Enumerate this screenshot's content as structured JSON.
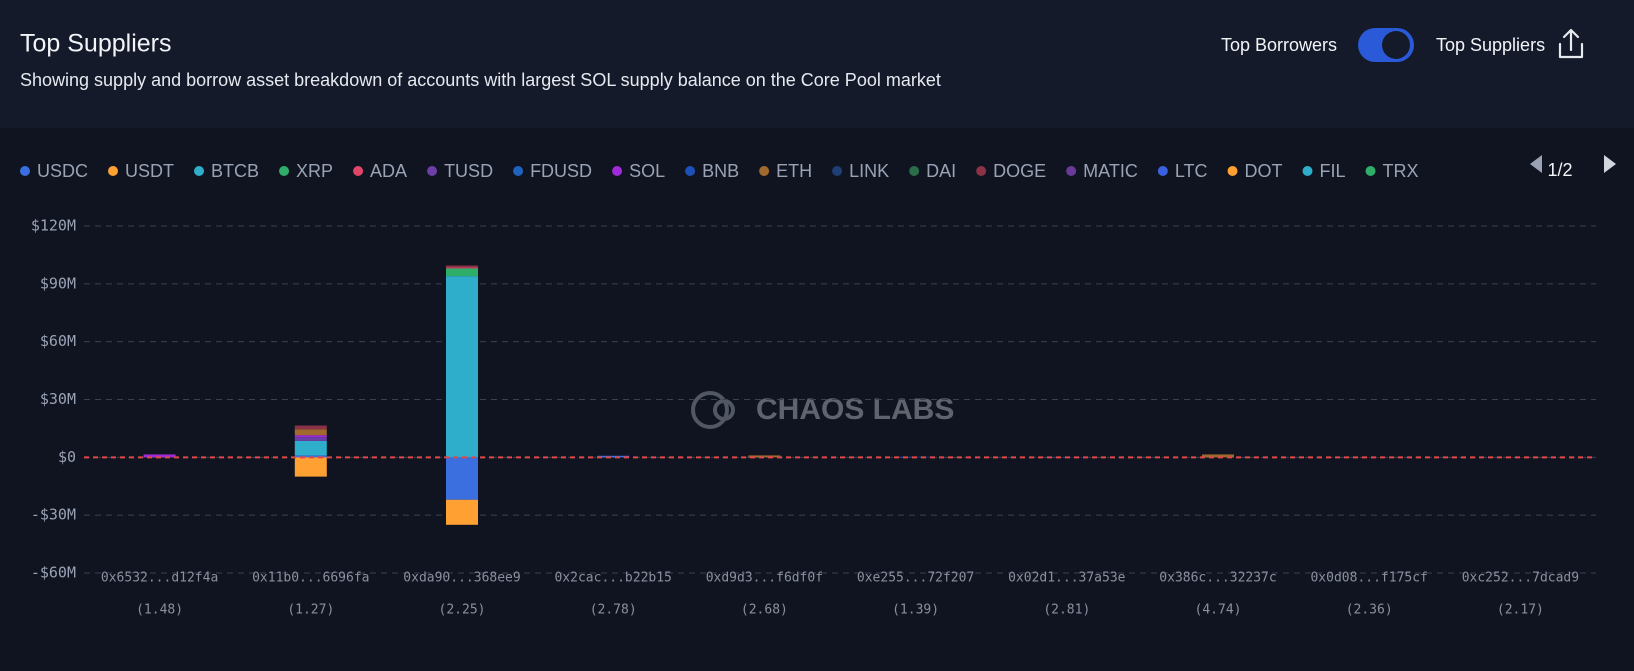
{
  "header": {
    "title": "Top Suppliers",
    "subtitle": "Showing supply and borrow asset breakdown of accounts with largest SOL supply balance on the Core Pool market",
    "toggle_left": "Top Borrowers",
    "toggle_right": "Top Suppliers"
  },
  "legend_page": "1/2",
  "watermark": "CHAOS LABS",
  "chart_data": {
    "type": "stacked_bar",
    "categories": [
      "0x6532...d12f4a",
      "0x11b0...6696fa",
      "0xda90...368ee9",
      "0x2cac...b22b15",
      "0xd9d3...f6df0f",
      "0xe255...72f207",
      "0x02d1...37a53e",
      "0x386c...32237c",
      "0x0d08...f175cf",
      "0xc252...7dcad9"
    ],
    "category_notes": [
      "(1.48)",
      "(1.27)",
      "(2.25)",
      "(2.78)",
      "(2.68)",
      "(1.39)",
      "(2.81)",
      "(4.74)",
      "(2.36)",
      "(2.17)"
    ],
    "ylim": [
      -60,
      120
    ],
    "yticks": [
      {
        "value": -60,
        "label": "-$60M"
      },
      {
        "value": -30,
        "label": "-$30M"
      },
      {
        "value": 0,
        "label": "$0"
      },
      {
        "value": 30,
        "label": "$30M"
      },
      {
        "value": 60,
        "label": "$60M"
      },
      {
        "value": 90,
        "label": "$90M"
      },
      {
        "value": 120,
        "label": "$120M"
      }
    ],
    "grid": true,
    "series": [
      {
        "name": "USDC",
        "color": "#3b6fe0",
        "values": [
          0,
          1,
          -22,
          0.8,
          0,
          0,
          0,
          0,
          0,
          0
        ]
      },
      {
        "name": "USDT",
        "color": "#ffa033",
        "values": [
          0,
          -10,
          -13,
          0,
          0,
          0,
          0,
          0,
          0,
          0
        ]
      },
      {
        "name": "BTCB",
        "color": "#2eaecb",
        "values": [
          0,
          7.5,
          94,
          0,
          0,
          0,
          0,
          0,
          0,
          0
        ]
      },
      {
        "name": "XRP",
        "color": "#2fae6a",
        "values": [
          0,
          0,
          4,
          0,
          0,
          0,
          0,
          0,
          0,
          0
        ]
      },
      {
        "name": "ADA",
        "color": "#e0466a",
        "values": [
          0,
          0,
          0.5,
          0,
          0,
          0,
          0,
          0,
          0,
          0
        ]
      },
      {
        "name": "TUSD",
        "color": "#6c3ea8",
        "values": [
          0,
          2,
          0,
          0,
          0,
          0,
          0,
          0,
          0,
          0
        ]
      },
      {
        "name": "FDUSD",
        "color": "#1f63c0",
        "values": [
          0,
          0,
          0,
          0,
          0,
          0,
          0,
          0,
          0,
          0
        ]
      },
      {
        "name": "SOL",
        "color": "#a02ad8",
        "values": [
          1.5,
          1,
          0,
          0,
          0,
          0,
          0,
          0,
          0,
          0
        ]
      },
      {
        "name": "BNB",
        "color": "#1f4fb8",
        "values": [
          0,
          0,
          0,
          0,
          0,
          0.3,
          0.2,
          0,
          0,
          0
        ]
      },
      {
        "name": "ETH",
        "color": "#a06a2e",
        "values": [
          0,
          3,
          0,
          0,
          1,
          0,
          0,
          1.5,
          0.1,
          0.1
        ]
      },
      {
        "name": "LINK",
        "color": "#1e3f75",
        "values": [
          0,
          0,
          0,
          0,
          0,
          0,
          0,
          0,
          0,
          0
        ]
      },
      {
        "name": "DAI",
        "color": "#2a6d48",
        "values": [
          0,
          0,
          0,
          0,
          0,
          0,
          0,
          0,
          0,
          0
        ]
      },
      {
        "name": "DOGE",
        "color": "#8b3346",
        "values": [
          0,
          2,
          1,
          0,
          0,
          0,
          0,
          0,
          0,
          0
        ]
      },
      {
        "name": "MATIC",
        "color": "#6a3a9a",
        "values": [
          0,
          0,
          0,
          0,
          0,
          0,
          0,
          0,
          0,
          0
        ]
      },
      {
        "name": "LTC",
        "color": "#3a62e0",
        "values": [
          0,
          0,
          0,
          0,
          0,
          0,
          0,
          0,
          0,
          0
        ]
      },
      {
        "name": "DOT",
        "color": "#ffa033",
        "values": [
          0,
          0,
          0,
          0,
          0,
          0,
          0,
          0,
          0,
          0
        ]
      },
      {
        "name": "FIL",
        "color": "#2eaecb",
        "values": [
          0,
          0,
          0,
          0,
          0,
          0,
          0,
          0,
          0,
          0
        ]
      },
      {
        "name": "TRX",
        "color": "#2fae6a",
        "values": [
          0,
          0,
          0,
          0,
          0,
          0,
          0,
          0,
          0,
          0
        ]
      }
    ]
  }
}
